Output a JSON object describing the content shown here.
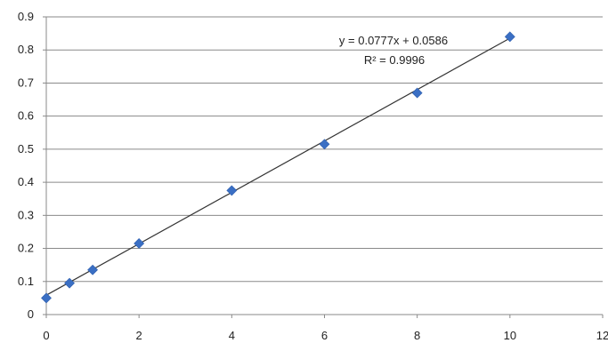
{
  "chart_data": {
    "type": "scatter",
    "title": "",
    "xlabel": "",
    "ylabel": "",
    "xlim": [
      0,
      12
    ],
    "ylim": [
      0,
      0.9
    ],
    "x_ticks": [
      0,
      2,
      4,
      6,
      8,
      10,
      12
    ],
    "y_ticks": [
      0,
      0.1,
      0.2,
      0.3,
      0.4,
      0.5,
      0.6,
      0.7,
      0.8,
      0.9
    ],
    "x_tick_labels": [
      "0",
      "2",
      "4",
      "6",
      "8",
      "10",
      "12"
    ],
    "y_tick_labels": [
      "0",
      "0.1",
      "0.2",
      "0.3",
      "0.4",
      "0.5",
      "0.6",
      "0.7",
      "0.8",
      "0.9"
    ],
    "grid": "horizontal",
    "legend": "none",
    "series": [
      {
        "x": [
          0,
          0.5,
          1,
          2,
          4,
          6,
          8,
          10
        ],
        "y": [
          0.05,
          0.095,
          0.135,
          0.215,
          0.375,
          0.515,
          0.67,
          0.84
        ],
        "marker": "diamond",
        "color": "#3a6fc4"
      }
    ],
    "trendline": {
      "slope": 0.0777,
      "intercept": 0.0586,
      "x_range": [
        0,
        10
      ],
      "color": "#333333",
      "equation_text": "y = 0.0777x + 0.0586",
      "r2_text": "R² = 0.9996"
    }
  }
}
